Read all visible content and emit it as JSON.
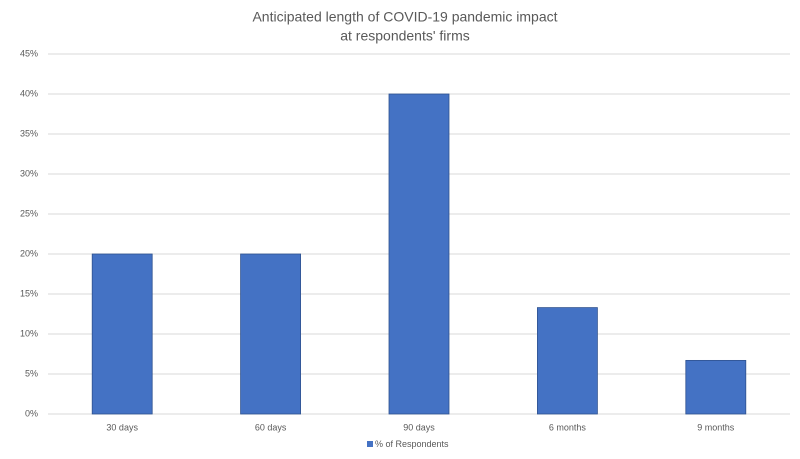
{
  "chart_data": {
    "type": "bar",
    "title": [
      "Anticipated length of COVID-19 pandemic impact",
      "at respondents' firms"
    ],
    "categories": [
      "30 days",
      "60 days",
      "90 days",
      "6 months",
      "9 months"
    ],
    "series": [
      {
        "name": "% of Respondents",
        "color": "#4472c4",
        "values": [
          20,
          20,
          40,
          13.3,
          6.7
        ]
      }
    ],
    "ylim": [
      0,
      45
    ],
    "yticks": [
      {
        "value": 0,
        "label": "0%"
      },
      {
        "value": 5,
        "label": "5%"
      },
      {
        "value": 10,
        "label": "10%"
      },
      {
        "value": 15,
        "label": "15%"
      },
      {
        "value": 20,
        "label": "20%"
      },
      {
        "value": 25,
        "label": "25%"
      },
      {
        "value": 30,
        "label": "30%"
      },
      {
        "value": 35,
        "label": "35%"
      },
      {
        "value": 40,
        "label": "40%"
      },
      {
        "value": 45,
        "label": "45%"
      }
    ],
    "grid": true,
    "legend": "bottom"
  }
}
